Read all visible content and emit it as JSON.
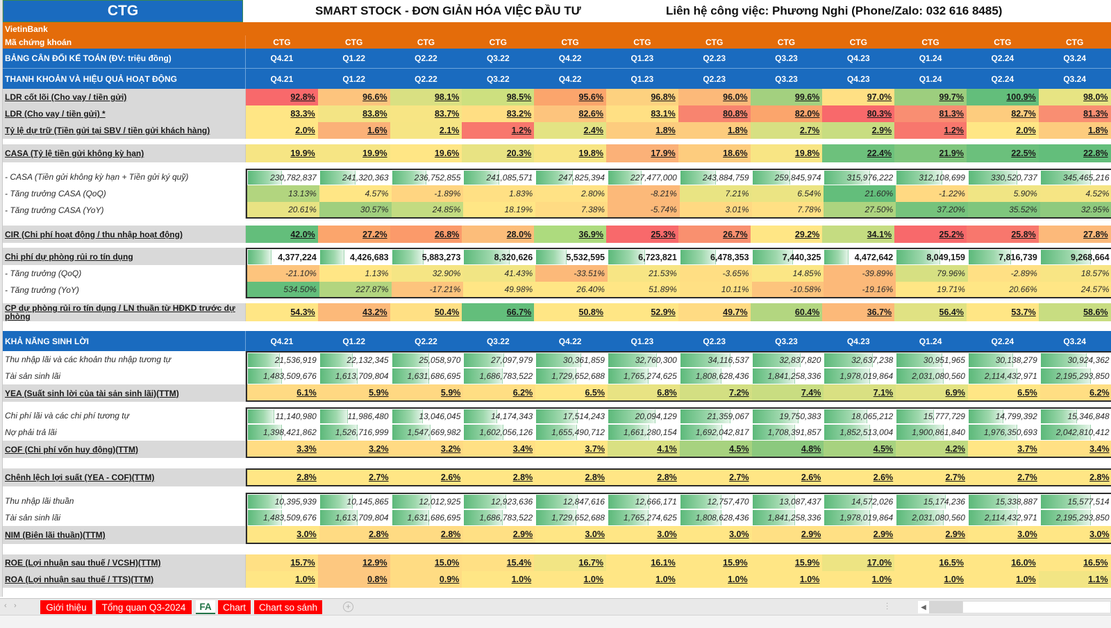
{
  "header": {
    "ticker": "CTG",
    "title": "SMART STOCK - ĐƠN GIẢN HÓA VIỆC ĐẦU TƯ",
    "contact": "Liên hệ công việc: Phương Nghi (Phone/Zalo: 032 616 8485)",
    "company": "VietinBank",
    "code_label": "Mã chứng khoán",
    "codes": [
      "CTG",
      "CTG",
      "CTG",
      "CTG",
      "CTG",
      "CTG",
      "CTG",
      "CTG",
      "CTG",
      "CTG",
      "CTG",
      "CTG"
    ],
    "balance_label": "BẢNG CÂN ĐỐI KẾ TOÁN (ĐV: triệu đồng)",
    "periods": [
      "Q4.21",
      "Q1.22",
      "Q2.22",
      "Q3.22",
      "Q4.22",
      "Q1.23",
      "Q2.23",
      "Q3.23",
      "Q4.23",
      "Q1.24",
      "Q2.24",
      "Q3.24"
    ]
  },
  "liquidity": {
    "section_label": "THANH KHOẢN VÀ HIỆU QUẢ HOẠT ĐỘNG",
    "ldr_core": {
      "label": "LDR cốt lõi (Cho vay / tiền gửi)",
      "values": [
        "92.8%",
        "96.6%",
        "98.1%",
        "98.5%",
        "95.6%",
        "96.8%",
        "96.0%",
        "99.6%",
        "97.0%",
        "99.7%",
        "100.9%",
        "98.0%"
      ]
    },
    "ldr": {
      "label": "LDR (Cho vay / tiền gửi) *",
      "values": [
        "83.3%",
        "83.8%",
        "83.7%",
        "83.2%",
        "82.6%",
        "83.1%",
        "80.8%",
        "82.0%",
        "80.3%",
        "81.3%",
        "82.7%",
        "81.3%"
      ]
    },
    "reserve": {
      "label": "Tỷ lệ dự trữ (Tiền gửi tại SBV / tiền gửi khách hàng)",
      "values": [
        "2.0%",
        "1.6%",
        "2.1%",
        "1.2%",
        "2.4%",
        "1.8%",
        "1.8%",
        "2.7%",
        "2.9%",
        "1.2%",
        "2.0%",
        "1.8%"
      ]
    },
    "casa_ratio": {
      "label": "CASA (Tỷ lệ tiền gửi không kỳ hạn)",
      "values": [
        "19.9%",
        "19.9%",
        "19.6%",
        "20.3%",
        "19.8%",
        "17.9%",
        "18.6%",
        "19.8%",
        "22.4%",
        "21.9%",
        "22.5%",
        "22.8%"
      ]
    },
    "casa_amount": {
      "label": "- CASA (Tiền gửi không kỳ hạn + Tiền gửi ký quỹ)",
      "values": [
        "230,782,837",
        "241,320,363",
        "236,752,855",
        "241,085,571",
        "247,825,394",
        "227,477,000",
        "243,884,759",
        "259,845,974",
        "315,976,222",
        "312,108,699",
        "330,520,737",
        "345,465,216"
      ]
    },
    "casa_qoq": {
      "label": "- Tăng trưởng CASA (QoQ)",
      "values": [
        "13.13%",
        "4.57%",
        "-1.89%",
        "1.83%",
        "2.80%",
        "-8.21%",
        "7.21%",
        "6.54%",
        "21.60%",
        "-1.22%",
        "5.90%",
        "4.52%"
      ]
    },
    "casa_yoy": {
      "label": "- Tăng trưởng CASA (YoY)",
      "values": [
        "20.61%",
        "30.57%",
        "24.85%",
        "18.19%",
        "7.38%",
        "-5.74%",
        "3.01%",
        "7.78%",
        "27.50%",
        "37.20%",
        "35.52%",
        "32.95%"
      ]
    },
    "cir": {
      "label": "CIR (Chi phí hoạt động / thu nhập hoạt động)",
      "values": [
        "42.0%",
        "27.2%",
        "26.8%",
        "28.0%",
        "36.9%",
        "25.3%",
        "26.7%",
        "29.2%",
        "34.1%",
        "25.2%",
        "25.8%",
        "27.8%"
      ]
    },
    "provision": {
      "label": "Chi phí dự phòng rủi ro tín dụng",
      "values": [
        "4,377,224",
        "4,426,683",
        "5,883,273",
        "8,320,626",
        "5,532,595",
        "6,723,821",
        "6,478,353",
        "7,440,325",
        "4,472,642",
        "8,049,159",
        "7,816,739",
        "9,268,664"
      ]
    },
    "provision_qoq": {
      "label": "- Tăng trưởng (QoQ)",
      "values": [
        "-21.10%",
        "1.13%",
        "32.90%",
        "41.43%",
        "-33.51%",
        "21.53%",
        "-3.65%",
        "14.85%",
        "-39.89%",
        "79.96%",
        "-2.89%",
        "18.57%"
      ]
    },
    "provision_yoy": {
      "label": "- Tăng trưởng (YoY)",
      "values": [
        "534.50%",
        "227.87%",
        "-17.21%",
        "49.98%",
        "26.40%",
        "51.89%",
        "10.11%",
        "-10.58%",
        "-19.16%",
        "19.71%",
        "20.66%",
        "24.57%"
      ]
    },
    "provision_ratio": {
      "label": "CP dự phòng rủi ro tín dụng / LN thuần từ HĐKD trước dự phòng",
      "values": [
        "54.3%",
        "43.2%",
        "50.4%",
        "66.7%",
        "50.8%",
        "52.9%",
        "49.7%",
        "60.4%",
        "36.7%",
        "56.4%",
        "53.7%",
        "58.6%"
      ]
    }
  },
  "profitability": {
    "section_label": "KHẢ NĂNG SINH LỜI",
    "interest_income": {
      "label": "Thu nhập lãi và các khoản thu nhập tương tự",
      "values": [
        "21,536,919",
        "22,132,345",
        "25,058,970",
        "27,097,979",
        "30,361,859",
        "32,760,300",
        "34,116,537",
        "32,837,820",
        "32,637,238",
        "30,951,965",
        "30,138,279",
        "30,924,362"
      ]
    },
    "earning_assets": {
      "label": "Tài sản sinh lãi",
      "values": [
        "1,483,509,676",
        "1,613,709,804",
        "1,631,686,695",
        "1,686,783,522",
        "1,729,652,688",
        "1,765,274,625",
        "1,808,628,436",
        "1,841,258,336",
        "1,978,019,864",
        "2,031,080,560",
        "2,114,432,971",
        "2,195,293,850"
      ]
    },
    "yea": {
      "label": "YEA (Suất sinh lời của tài sản sinh lãi)",
      "suffix": " (TTM)",
      "values": [
        "6.1%",
        "5.9%",
        "5.9%",
        "6.2%",
        "6.5%",
        "6.8%",
        "7.2%",
        "7.4%",
        "7.1%",
        "6.9%",
        "6.5%",
        "6.2%"
      ]
    },
    "interest_expense": {
      "label": "Chi phí lãi và các chi phí tương tự",
      "values": [
        "11,140,980",
        "11,986,480",
        "13,046,045",
        "14,174,343",
        "17,514,243",
        "20,094,129",
        "21,359,067",
        "19,750,383",
        "18,065,212",
        "15,777,729",
        "14,799,392",
        "15,346,848"
      ]
    },
    "interest_liabilities": {
      "label": "Nợ phải trả lãi",
      "values": [
        "1,398,421,862",
        "1,526,716,999",
        "1,547,669,982",
        "1,602,056,126",
        "1,655,490,712",
        "1,661,280,154",
        "1,692,042,817",
        "1,708,391,857",
        "1,852,513,004",
        "1,900,861,840",
        "1,976,350,693",
        "2,042,810,412"
      ]
    },
    "cof": {
      "label": "COF (Chi phí vốn huy động)",
      "suffix": " (TTM)",
      "values": [
        "3.3%",
        "3.2%",
        "3.2%",
        "3.4%",
        "3.7%",
        "4.1%",
        "4.5%",
        "4.8%",
        "4.5%",
        "4.2%",
        "3.7%",
        "3.4%"
      ]
    },
    "spread": {
      "label": "Chênh lệch lợi suất (YEA - COF)",
      "suffix": " (TTM)",
      "values": [
        "2.8%",
        "2.7%",
        "2.6%",
        "2.8%",
        "2.8%",
        "2.8%",
        "2.7%",
        "2.6%",
        "2.6%",
        "2.7%",
        "2.7%",
        "2.8%"
      ]
    },
    "net_interest_income": {
      "label": "Thu nhập lãi thuần",
      "values": [
        "10,395,939",
        "10,145,865",
        "12,012,925",
        "12,923,636",
        "12,847,616",
        "12,666,171",
        "12,757,470",
        "13,087,437",
        "14,572,026",
        "15,174,236",
        "15,338,887",
        "15,577,514"
      ]
    },
    "earning_assets_2": {
      "label": "Tài sản sinh lãi",
      "values": [
        "1,483,509,676",
        "1,613,709,804",
        "1,631,686,695",
        "1,686,783,522",
        "1,729,652,688",
        "1,765,274,625",
        "1,808,628,436",
        "1,841,258,336",
        "1,978,019,864",
        "2,031,080,560",
        "2,114,432,971",
        "2,195,293,850"
      ]
    },
    "nim": {
      "label": "NIM (Biên lãi thuần)",
      "suffix": " (TTM)",
      "values": [
        "3.0%",
        "2.8%",
        "2.8%",
        "2.9%",
        "3.0%",
        "3.0%",
        "3.0%",
        "2.9%",
        "2.9%",
        "2.9%",
        "3.0%",
        "3.0%"
      ]
    },
    "roe": {
      "label": "ROE (Lợi nhuận sau thuế / VCSH)",
      "suffix": " (TTM)",
      "values": [
        "15.7%",
        "12.9%",
        "15.0%",
        "15.4%",
        "16.7%",
        "16.1%",
        "15.9%",
        "15.9%",
        "17.0%",
        "16.5%",
        "16.0%",
        "16.5%"
      ]
    },
    "roa": {
      "label": "ROA (Lợi nhuận sau thuế / TTS)",
      "suffix": " (TTM)",
      "values": [
        "1.0%",
        "0.8%",
        "0.9%",
        "1.0%",
        "1.0%",
        "1.0%",
        "1.0%",
        "1.0%",
        "1.0%",
        "1.0%",
        "1.0%",
        "1.1%"
      ]
    }
  },
  "colors": {
    "header_blue": "#1a6bbf",
    "header_orange": "#e46c0a",
    "red": "#f8696b",
    "orange": "#fba56c",
    "yellow": "#ffe685",
    "green": "#63be7b",
    "tab_red": "#ff0000",
    "tab_active_green": "#217346"
  },
  "heat": {
    "ldr_core": [
      "#f8696b",
      "#fdc47d",
      "#d9e082",
      "#cde07f",
      "#fba56c",
      "#fdd17f",
      "#fcb979",
      "#a3d07f",
      "#ffe084",
      "#9dce7e",
      "#63be7b",
      "#e7e483"
    ],
    "ldr": [
      "#ffe685",
      "#f3e484",
      "#f7e584",
      "#ffde83",
      "#fdc47d",
      "#ffe084",
      "#f8846f",
      "#fba56c",
      "#f8696b",
      "#f98e72",
      "#fdcc7e",
      "#f98e72"
    ],
    "reserve": [
      "#ffe685",
      "#fbb178",
      "#f6e584",
      "#f8776d",
      "#e3e383",
      "#fdcc7e",
      "#fdcc7e",
      "#d7e082",
      "#c8dd81",
      "#f8776d",
      "#ffe685",
      "#fdcc7e"
    ],
    "casa_ratio": [
      "#f6e584",
      "#f6e584",
      "#ffe685",
      "#e8e383",
      "#f8e584",
      "#fbb178",
      "#fdcc7e",
      "#f8e584",
      "#6dc17c",
      "#7fc67d",
      "#6bc07c",
      "#63be7b"
    ],
    "casa_qoq": [
      "#b2d57f",
      "#ffe685",
      "#ffd581",
      "#ffe084",
      "#ffe285",
      "#fcb979",
      "#e9e483",
      "#ebe483",
      "#63be7b",
      "#ffd982",
      "#f0e584",
      "#f6e584"
    ],
    "casa_yoy": [
      "#e8e383",
      "#a0cf7e",
      "#c3db81",
      "#ffe685",
      "#ffdb83",
      "#fcb979",
      "#ffd982",
      "#ffe084",
      "#add47f",
      "#75c37c",
      "#7fc67d",
      "#8fca7e"
    ],
    "cir": [
      "#63be7b",
      "#fba56c",
      "#fb9a6a",
      "#fcbd7a",
      "#addb7e",
      "#f8696b",
      "#f9906f",
      "#ffe685",
      "#c5dc81",
      "#f8696b",
      "#f8776d",
      "#fcb97a"
    ],
    "provision_qoq": [
      "#fdc47d",
      "#ffe685",
      "#f5e584",
      "#f1e584",
      "#fcb979",
      "#f7e584",
      "#ffde83",
      "#fbe685",
      "#fcb979",
      "#d6e082",
      "#ffe084",
      "#f8e584"
    ],
    "provision_yoy": [
      "#63be7b",
      "#b2d57f",
      "#fdc47d",
      "#ffe685",
      "#ffe685",
      "#ffe685",
      "#ffe084",
      "#fdc47d",
      "#fcb979",
      "#ffe685",
      "#ffe685",
      "#ffe685"
    ],
    "provision_ratio": [
      "#ffe685",
      "#fcb979",
      "#ffe084",
      "#63be7b",
      "#ffe685",
      "#ffe685",
      "#ffdb83",
      "#b3d680",
      "#fcb979",
      "#e0e283",
      "#ffe685",
      "#c8dd81"
    ],
    "yea": [
      "#ffda83",
      "#ffd882",
      "#ffd882",
      "#ffde83",
      "#ffe685",
      "#e8e383",
      "#d3df82",
      "#c9dd81",
      "#d9e082",
      "#e3e383",
      "#ffe685",
      "#ffde83"
    ],
    "cof": [
      "#ffdc83",
      "#ffda83",
      "#ffda83",
      "#ffe084",
      "#ffe685",
      "#d9e082",
      "#a7d27f",
      "#8bc97e",
      "#a7d27f",
      "#c0da81",
      "#ffe685",
      "#ffe084"
    ],
    "spread": [
      "#ffe685",
      "#ffe685",
      "#ffe685",
      "#ffe685",
      "#ffe685",
      "#ffe685",
      "#ffe685",
      "#ffe685",
      "#ffe685",
      "#ffe685",
      "#ffe685",
      "#ffe685"
    ],
    "nim": [
      "#ffe685",
      "#ffdb83",
      "#ffdb83",
      "#ffe084",
      "#ffe685",
      "#ffe685",
      "#ffe685",
      "#ffe084",
      "#ffe084",
      "#ffe084",
      "#ffe685",
      "#ffe685"
    ],
    "roe": [
      "#ffe084",
      "#fdc880",
      "#ffdc83",
      "#ffe084",
      "#f2e584",
      "#ffe685",
      "#ffe685",
      "#ffe685",
      "#ede483",
      "#ffe685",
      "#ffe685",
      "#ffe685"
    ],
    "roa": [
      "#ffe685",
      "#fdc880",
      "#ffdc83",
      "#ffe685",
      "#ffe685",
      "#ffe685",
      "#ffe685",
      "#ffe685",
      "#ffe685",
      "#ffe685",
      "#ffe685",
      "#f2e584"
    ]
  },
  "bars": {
    "casa_amount": [
      0.67,
      0.7,
      0.68,
      0.7,
      0.72,
      0.66,
      0.7,
      0.75,
      0.91,
      0.9,
      0.96,
      1.0
    ],
    "provision": [
      0.47,
      0.48,
      0.63,
      0.9,
      0.6,
      0.73,
      0.7,
      0.8,
      0.48,
      0.87,
      0.84,
      1.0
    ],
    "interest_income": [
      0.63,
      0.65,
      0.73,
      0.79,
      0.89,
      0.96,
      1.0,
      0.96,
      0.96,
      0.91,
      0.88,
      0.91
    ],
    "earning_assets": [
      0.68,
      0.74,
      0.74,
      0.77,
      0.79,
      0.8,
      0.82,
      0.84,
      0.9,
      0.93,
      0.96,
      1.0
    ],
    "interest_expense": [
      0.52,
      0.56,
      0.61,
      0.66,
      0.82,
      0.94,
      1.0,
      0.92,
      0.85,
      0.74,
      0.69,
      0.72
    ],
    "interest_liabilities": [
      0.68,
      0.75,
      0.76,
      0.78,
      0.81,
      0.81,
      0.83,
      0.84,
      0.91,
      0.93,
      0.97,
      1.0
    ],
    "net_interest_income": [
      0.67,
      0.65,
      0.77,
      0.83,
      0.82,
      0.81,
      0.82,
      0.84,
      0.94,
      0.97,
      0.98,
      1.0
    ],
    "earning_assets_2": [
      0.68,
      0.74,
      0.74,
      0.77,
      0.79,
      0.8,
      0.82,
      0.84,
      0.9,
      0.93,
      0.96,
      1.0
    ]
  },
  "tabs": [
    {
      "label": "Giới thiệu",
      "active": false
    },
    {
      "label": "Tổng quan Q3-2024",
      "active": false
    },
    {
      "label": "FA",
      "active": true
    },
    {
      "label": "Chart",
      "active": false
    },
    {
      "label": "Chart so sánh",
      "active": false
    }
  ]
}
